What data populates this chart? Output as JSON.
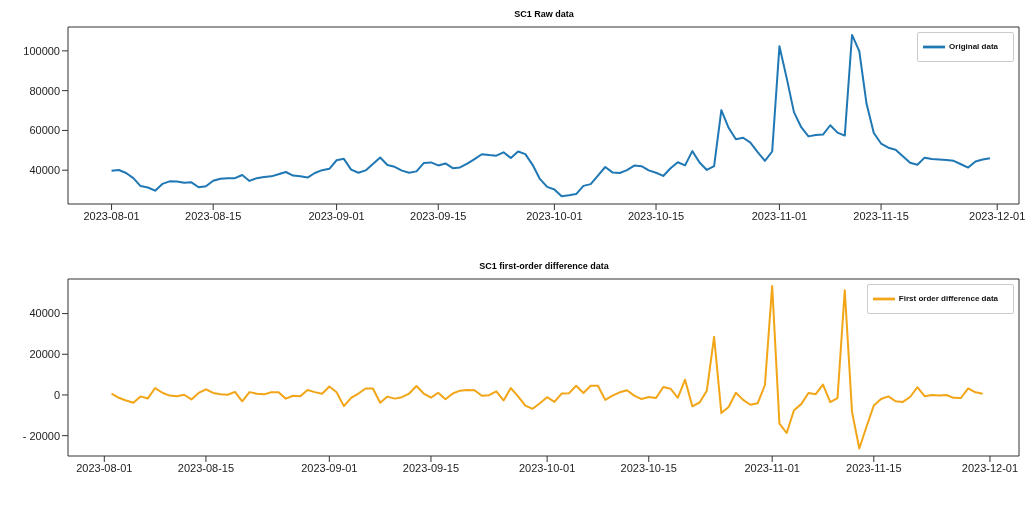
{
  "chart_data": [
    {
      "type": "line",
      "title": "SC1 Raw data",
      "legend": "top right",
      "x": [
        "2023-08-01",
        "2023-08-02",
        "2023-08-03",
        "2023-08-04",
        "2023-08-05",
        "2023-08-06",
        "2023-08-07",
        "2023-08-08",
        "2023-08-09",
        "2023-08-10",
        "2023-08-11",
        "2023-08-12",
        "2023-08-13",
        "2023-08-14",
        "2023-08-15",
        "2023-08-16",
        "2023-08-17",
        "2023-08-18",
        "2023-08-19",
        "2023-08-20",
        "2023-08-21",
        "2023-08-22",
        "2023-08-23",
        "2023-08-24",
        "2023-08-25",
        "2023-08-26",
        "2023-08-27",
        "2023-08-28",
        "2023-08-29",
        "2023-08-30",
        "2023-08-31",
        "2023-09-01",
        "2023-09-02",
        "2023-09-03",
        "2023-09-04",
        "2023-09-05",
        "2023-09-06",
        "2023-09-07",
        "2023-09-08",
        "2023-09-09",
        "2023-09-10",
        "2023-09-11",
        "2023-09-12",
        "2023-09-13",
        "2023-09-14",
        "2023-09-15",
        "2023-09-16",
        "2023-09-17",
        "2023-09-18",
        "2023-09-19",
        "2023-09-20",
        "2023-09-21",
        "2023-09-22",
        "2023-09-23",
        "2023-09-24",
        "2023-09-25",
        "2023-09-26",
        "2023-09-27",
        "2023-09-28",
        "2023-09-29",
        "2023-09-30",
        "2023-10-01",
        "2023-10-02",
        "2023-10-03",
        "2023-10-04",
        "2023-10-05",
        "2023-10-06",
        "2023-10-07",
        "2023-10-08",
        "2023-10-09",
        "2023-10-10",
        "2023-10-11",
        "2023-10-12",
        "2023-10-13",
        "2023-10-14",
        "2023-10-15",
        "2023-10-16",
        "2023-10-17",
        "2023-10-18",
        "2023-10-19",
        "2023-10-20",
        "2023-10-21",
        "2023-10-22",
        "2023-10-23",
        "2023-10-24",
        "2023-10-25",
        "2023-10-26",
        "2023-10-27",
        "2023-10-28",
        "2023-10-29",
        "2023-10-30",
        "2023-10-31",
        "2023-11-01",
        "2023-11-02",
        "2023-11-03",
        "2023-11-04",
        "2023-11-05",
        "2023-11-06",
        "2023-11-07",
        "2023-11-08",
        "2023-11-09",
        "2023-11-10",
        "2023-11-11",
        "2023-11-12",
        "2023-11-13",
        "2023-11-14",
        "2023-11-15",
        "2023-11-16",
        "2023-11-17",
        "2023-11-18",
        "2023-11-19",
        "2023-11-20",
        "2023-11-21",
        "2023-11-22",
        "2023-11-23",
        "2023-11-24",
        "2023-11-25",
        "2023-11-26",
        "2023-11-27",
        "2023-11-28",
        "2023-11-29",
        "2023-11-30"
      ],
      "series": [
        {
          "name": "Original data",
          "color": "#1f77b4",
          "values": [
            39700,
            40100,
            38600,
            36000,
            32000,
            31300,
            29700,
            33100,
            34400,
            34300,
            33700,
            33900,
            31400,
            31900,
            34700,
            35700,
            36000,
            36000,
            37600,
            34600,
            36000,
            36600,
            36900,
            38000,
            39100,
            37300,
            36900,
            36300,
            38600,
            40000,
            40700,
            45000,
            45700,
            40300,
            38700,
            39900,
            43100,
            46400,
            42600,
            41700,
            39800,
            38700,
            39400,
            43600,
            43900,
            42400,
            43400,
            41000,
            41400,
            43300,
            45600,
            48000,
            47600,
            47300,
            49000,
            46100,
            49400,
            48100,
            42700,
            35600,
            31600,
            30300,
            26900,
            27400,
            28000,
            32100,
            33000,
            37300,
            41600,
            38900,
            38600,
            40000,
            42300,
            42000,
            39900,
            38700,
            37100,
            41000,
            44000,
            42400,
            49600,
            43900,
            40100,
            42100,
            70200,
            61300,
            55600,
            56300,
            53900,
            49100,
            44700,
            49400,
            102300,
            86300,
            69200,
            61600,
            57000,
            57700,
            57900,
            62600,
            58900,
            57400,
            108000,
            99900,
            73400,
            58700,
            53400,
            51300,
            50300,
            47000,
            43700,
            42700,
            46300,
            45600,
            45400,
            45100,
            44700,
            43000,
            41300,
            44400,
            45400,
            46000
          ]
        }
      ],
      "xlim": [
        "2023-07-26",
        "2023-12-04"
      ],
      "xticks": [
        "2023-08-01",
        "2023-08-15",
        "2023-09-01",
        "2023-09-15",
        "2023-10-01",
        "2023-10-15",
        "2023-11-01",
        "2023-11-15",
        "2023-12-01"
      ],
      "ylim": [
        23000,
        112000
      ],
      "yticks": [
        40000,
        60000,
        80000,
        100000
      ]
    },
    {
      "type": "line",
      "title": "SC1 first-order difference data",
      "legend": "top right",
      "x": [
        "2023-08-02",
        "2023-08-03",
        "2023-08-04",
        "2023-08-05",
        "2023-08-06",
        "2023-08-07",
        "2023-08-08",
        "2023-08-09",
        "2023-08-10",
        "2023-08-11",
        "2023-08-12",
        "2023-08-13",
        "2023-08-14",
        "2023-08-15",
        "2023-08-16",
        "2023-08-17",
        "2023-08-18",
        "2023-08-19",
        "2023-08-20",
        "2023-08-21",
        "2023-08-22",
        "2023-08-23",
        "2023-08-24",
        "2023-08-25",
        "2023-08-26",
        "2023-08-27",
        "2023-08-28",
        "2023-08-29",
        "2023-08-30",
        "2023-08-31",
        "2023-09-01",
        "2023-09-02",
        "2023-09-03",
        "2023-09-04",
        "2023-09-05",
        "2023-09-06",
        "2023-09-07",
        "2023-09-08",
        "2023-09-09",
        "2023-09-10",
        "2023-09-11",
        "2023-09-12",
        "2023-09-13",
        "2023-09-14",
        "2023-09-15",
        "2023-09-16",
        "2023-09-17",
        "2023-09-18",
        "2023-09-19",
        "2023-09-20",
        "2023-09-21",
        "2023-09-22",
        "2023-09-23",
        "2023-09-24",
        "2023-09-25",
        "2023-09-26",
        "2023-09-27",
        "2023-09-28",
        "2023-09-29",
        "2023-09-30",
        "2023-10-01",
        "2023-10-02",
        "2023-10-03",
        "2023-10-04",
        "2023-10-05",
        "2023-10-06",
        "2023-10-07",
        "2023-10-08",
        "2023-10-09",
        "2023-10-10",
        "2023-10-11",
        "2023-10-12",
        "2023-10-13",
        "2023-10-14",
        "2023-10-15",
        "2023-10-16",
        "2023-10-17",
        "2023-10-18",
        "2023-10-19",
        "2023-10-20",
        "2023-10-21",
        "2023-10-22",
        "2023-10-23",
        "2023-10-24",
        "2023-10-25",
        "2023-10-26",
        "2023-10-27",
        "2023-10-28",
        "2023-10-29",
        "2023-10-30",
        "2023-10-31",
        "2023-11-01",
        "2023-11-02",
        "2023-11-03",
        "2023-11-04",
        "2023-11-05",
        "2023-11-06",
        "2023-11-07",
        "2023-11-08",
        "2023-11-09",
        "2023-11-10",
        "2023-11-11",
        "2023-11-12",
        "2023-11-13",
        "2023-11-14",
        "2023-11-15",
        "2023-11-16",
        "2023-11-17",
        "2023-11-18",
        "2023-11-19",
        "2023-11-20",
        "2023-11-21",
        "2023-11-22",
        "2023-11-23",
        "2023-11-24",
        "2023-11-25",
        "2023-11-26",
        "2023-11-27",
        "2023-11-28",
        "2023-11-29",
        "2023-11-30"
      ],
      "series": [
        {
          "name": "First order difference data",
          "color": "#f2a516",
          "values": [
            700,
            -1400,
            -2700,
            -3800,
            -700,
            -1700,
            3400,
            1100,
            -300,
            -600,
            100,
            -2200,
            1000,
            2800,
            1000,
            300,
            100,
            1500,
            -3100,
            1400,
            600,
            300,
            1300,
            1300,
            -1800,
            -400,
            -600,
            2400,
            1400,
            600,
            4200,
            1300,
            -5500,
            -1400,
            700,
            3200,
            3200,
            -3800,
            -800,
            -1800,
            -1100,
            700,
            4400,
            700,
            -1300,
            1100,
            -2100,
            700,
            2100,
            2400,
            2300,
            -400,
            -100,
            1800,
            -2700,
            3400,
            -700,
            -5200,
            -6800,
            -4100,
            -1100,
            -3400,
            700,
            800,
            4500,
            1000,
            4500,
            4500,
            -2400,
            -300,
            1300,
            2300,
            -300,
            -2000,
            -1000,
            -1500,
            3900,
            3100,
            -1400,
            7500,
            -5600,
            -3700,
            2100,
            28600,
            -8900,
            -5900,
            1100,
            -2400,
            -4800,
            -4100,
            4900,
            53600,
            -14100,
            -18700,
            -7500,
            -4500,
            1000,
            400,
            5100,
            -3500,
            -1500,
            51500,
            -8300,
            -26300,
            -15500,
            -5200,
            -2000,
            -700,
            -3100,
            -3400,
            -1000,
            3800,
            -600,
            0,
            -300,
            0,
            -1400,
            -1500,
            3200,
            1300,
            600
          ]
        }
      ],
      "xlim": [
        "2023-07-27",
        "2023-12-05"
      ],
      "xticks": [
        "2023-08-01",
        "2023-08-15",
        "2023-09-01",
        "2023-09-15",
        "2023-10-01",
        "2023-10-15",
        "2023-11-01",
        "2023-11-15",
        "2023-12-01"
      ],
      "ylim": [
        -30000,
        57000
      ],
      "yticks": [
        {
          "value": -20000,
          "label": "- 20000"
        },
        0,
        20000,
        40000
      ]
    }
  ]
}
